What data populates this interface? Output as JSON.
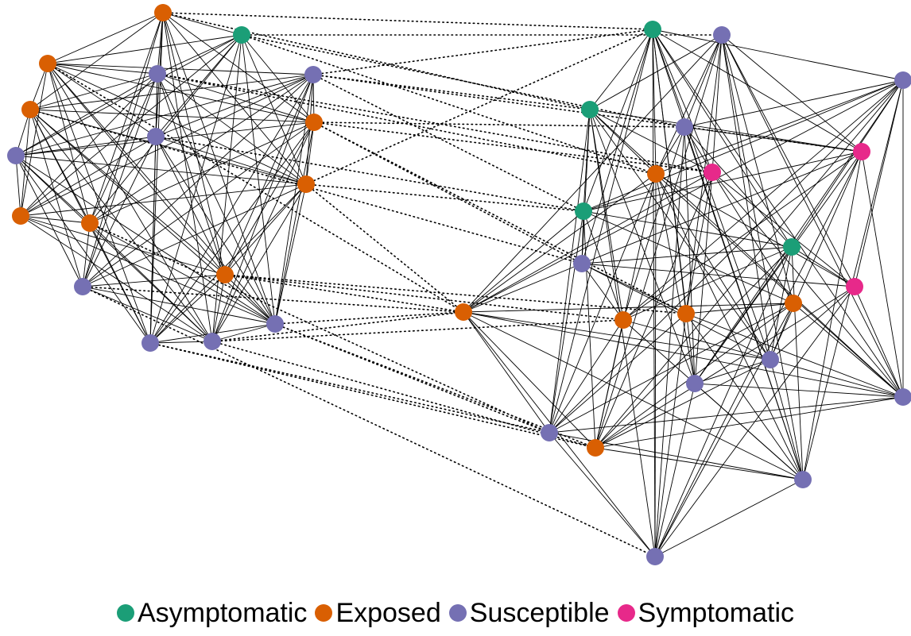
{
  "legend": [
    {
      "key": "asymptomatic",
      "label": "Asymptomatic",
      "color": "#1b9e77"
    },
    {
      "key": "exposed",
      "label": "Exposed",
      "color": "#d95f02"
    },
    {
      "key": "susceptible",
      "label": "Susceptible",
      "color": "#7570b3"
    },
    {
      "key": "symptomatic",
      "label": "Symptomatic",
      "color": "#e7298a"
    }
  ],
  "node_states": {
    "cluster_left": [
      "exposed",
      "asymptomatic",
      "exposed",
      "susceptible",
      "susceptible",
      "exposed",
      "exposed",
      "susceptible",
      "susceptible",
      "exposed",
      "exposed",
      "exposed",
      "exposed",
      "susceptible",
      "susceptible",
      "susceptible",
      "susceptible"
    ],
    "cluster_right": [
      "asymptomatic",
      "susceptible",
      "susceptible",
      "asymptomatic",
      "susceptible",
      "symptomatic",
      "exposed",
      "symptomatic",
      "asymptomatic",
      "asymptomatic",
      "susceptible",
      "symptomatic",
      "exposed",
      "exposed",
      "exposed",
      "exposed",
      "susceptible",
      "susceptible",
      "susceptible",
      "susceptible",
      "exposed",
      "susceptible",
      "susceptible"
    ]
  },
  "edge_styles": {
    "within_cluster": "solid",
    "between_clusters": "dotted"
  }
}
